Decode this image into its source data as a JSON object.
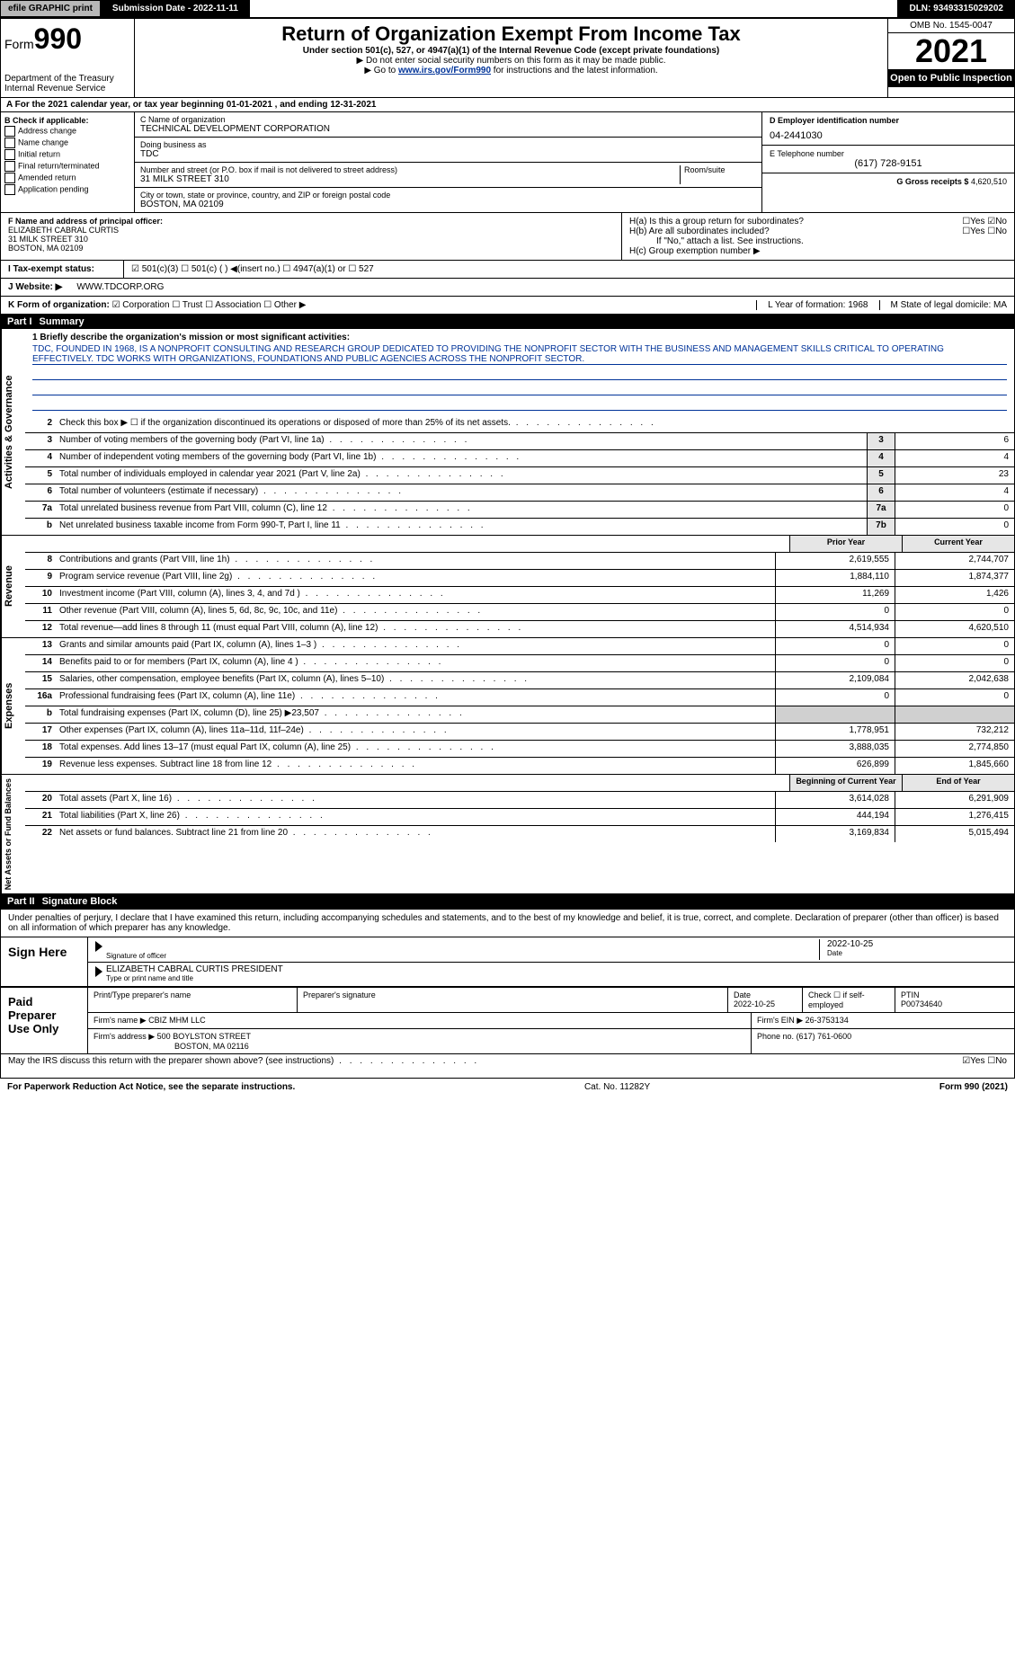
{
  "topbar": {
    "efile_prefix": "efile",
    "efile_bold": "GRAPHIC",
    "efile_suffix": "print",
    "submission": "Submission Date - 2022-11-11",
    "dln": "DLN: 93493315029202"
  },
  "header": {
    "form_prefix": "Form",
    "form_number": "990",
    "title": "Return of Organization Exempt From Income Tax",
    "subtitle": "Under section 501(c), 527, or 4947(a)(1) of the Internal Revenue Code (except private foundations)",
    "note1": "▶ Do not enter social security numbers on this form as it may be made public.",
    "note2_pre": "▶ Go to ",
    "note2_link": "www.irs.gov/Form990",
    "note2_post": " for instructions and the latest information.",
    "dept": "Department of the Treasury",
    "irs": "Internal Revenue Service",
    "omb": "OMB No. 1545-0047",
    "year": "2021",
    "open": "Open to Public Inspection"
  },
  "row_a": {
    "text": "A For the 2021 calendar year, or tax year beginning 01-01-2021     , and ending 12-31-2021"
  },
  "col_b": {
    "head": "B Check if applicable:",
    "opts": [
      "Address change",
      "Name change",
      "Initial return",
      "Final return/terminated",
      "Amended return",
      "Application pending"
    ]
  },
  "col_c": {
    "name_lbl": "C Name of organization",
    "name": "TECHNICAL DEVELOPMENT CORPORATION",
    "dba_lbl": "Doing business as",
    "dba": "TDC",
    "addr_lbl": "Number and street (or P.O. box if mail is not delivered to street address)",
    "room_lbl": "Room/suite",
    "addr": "31 MILK STREET 310",
    "city_lbl": "City or town, state or province, country, and ZIP or foreign postal code",
    "city": "BOSTON, MA  02109"
  },
  "col_de": {
    "d_lbl": "D Employer identification number",
    "d_val": "04-2441030",
    "e_lbl": "E Telephone number",
    "e_val": "(617) 728-9151",
    "g_lbl": "G Gross receipts $",
    "g_val": "4,620,510"
  },
  "row_f": {
    "lbl": "F Name and address of principal officer:",
    "name": "ELIZABETH CABRAL CURTIS",
    "addr1": "31 MILK STREET 310",
    "addr2": "BOSTON, MA  02109"
  },
  "row_h": {
    "a": "H(a)  Is this a group return for subordinates?",
    "a_ans": "☐Yes ☑No",
    "b": "H(b)  Are all subordinates included?",
    "b_ans": "☐Yes ☐No",
    "b_note": "If \"No,\" attach a list. See instructions.",
    "c": "H(c)  Group exemption number ▶"
  },
  "row_i": {
    "lbl": "I  Tax-exempt status:",
    "opts": "☑ 501(c)(3)   ☐ 501(c) (  ) ◀(insert no.)   ☐ 4947(a)(1) or   ☐ 527"
  },
  "row_j": {
    "lbl": "J  Website: ▶",
    "val": "WWW.TDCORP.ORG"
  },
  "row_k": {
    "lbl": "K Form of organization:",
    "opts": "☑ Corporation  ☐ Trust  ☐ Association  ☐ Other ▶",
    "l": "L Year of formation: 1968",
    "m": "M State of legal domicile: MA"
  },
  "part1": {
    "head": "Part I",
    "title": "Summary",
    "mission_lbl": "1  Briefly describe the organization's mission or most significant activities:",
    "mission": "TDC, FOUNDED IN 1968, IS A NONPROFIT CONSULTING AND RESEARCH GROUP DEDICATED TO PROVIDING THE NONPROFIT SECTOR WITH THE BUSINESS AND MANAGEMENT SKILLS CRITICAL TO OPERATING EFFECTIVELY. TDC WORKS WITH ORGANIZATIONS, FOUNDATIONS AND PUBLIC AGENCIES ACROSS THE NONPROFIT SECTOR."
  },
  "gov_lines": [
    {
      "n": "2",
      "t": "Check this box ▶ ☐ if the organization discontinued its operations or disposed of more than 25% of its net assets.",
      "box": "",
      "v": ""
    },
    {
      "n": "3",
      "t": "Number of voting members of the governing body (Part VI, line 1a)",
      "box": "3",
      "v": "6"
    },
    {
      "n": "4",
      "t": "Number of independent voting members of the governing body (Part VI, line 1b)",
      "box": "4",
      "v": "4"
    },
    {
      "n": "5",
      "t": "Total number of individuals employed in calendar year 2021 (Part V, line 2a)",
      "box": "5",
      "v": "23"
    },
    {
      "n": "6",
      "t": "Total number of volunteers (estimate if necessary)",
      "box": "6",
      "v": "4"
    },
    {
      "n": "7a",
      "t": "Total unrelated business revenue from Part VIII, column (C), line 12",
      "box": "7a",
      "v": "0"
    },
    {
      "n": "b",
      "t": "Net unrelated business taxable income from Form 990-T, Part I, line 11",
      "box": "7b",
      "v": "0"
    }
  ],
  "rev_head": {
    "prior": "Prior Year",
    "curr": "Current Year"
  },
  "rev_lines": [
    {
      "n": "8",
      "t": "Contributions and grants (Part VIII, line 1h)",
      "p": "2,619,555",
      "c": "2,744,707"
    },
    {
      "n": "9",
      "t": "Program service revenue (Part VIII, line 2g)",
      "p": "1,884,110",
      "c": "1,874,377"
    },
    {
      "n": "10",
      "t": "Investment income (Part VIII, column (A), lines 3, 4, and 7d )",
      "p": "11,269",
      "c": "1,426"
    },
    {
      "n": "11",
      "t": "Other revenue (Part VIII, column (A), lines 5, 6d, 8c, 9c, 10c, and 11e)",
      "p": "0",
      "c": "0"
    },
    {
      "n": "12",
      "t": "Total revenue—add lines 8 through 11 (must equal Part VIII, column (A), line 12)",
      "p": "4,514,934",
      "c": "4,620,510"
    }
  ],
  "exp_lines": [
    {
      "n": "13",
      "t": "Grants and similar amounts paid (Part IX, column (A), lines 1–3 )",
      "p": "0",
      "c": "0"
    },
    {
      "n": "14",
      "t": "Benefits paid to or for members (Part IX, column (A), line 4 )",
      "p": "0",
      "c": "0"
    },
    {
      "n": "15",
      "t": "Salaries, other compensation, employee benefits (Part IX, column (A), lines 5–10)",
      "p": "2,109,084",
      "c": "2,042,638"
    },
    {
      "n": "16a",
      "t": "Professional fundraising fees (Part IX, column (A), line 11e)",
      "p": "0",
      "c": "0"
    },
    {
      "n": "b",
      "t": "Total fundraising expenses (Part IX, column (D), line 25) ▶23,507",
      "p": "",
      "c": "",
      "shade": true
    },
    {
      "n": "17",
      "t": "Other expenses (Part IX, column (A), lines 11a–11d, 11f–24e)",
      "p": "1,778,951",
      "c": "732,212"
    },
    {
      "n": "18",
      "t": "Total expenses. Add lines 13–17 (must equal Part IX, column (A), line 25)",
      "p": "3,888,035",
      "c": "2,774,850"
    },
    {
      "n": "19",
      "t": "Revenue less expenses. Subtract line 18 from line 12",
      "p": "626,899",
      "c": "1,845,660"
    }
  ],
  "net_head": {
    "prior": "Beginning of Current Year",
    "curr": "End of Year"
  },
  "net_lines": [
    {
      "n": "20",
      "t": "Total assets (Part X, line 16)",
      "p": "3,614,028",
      "c": "6,291,909"
    },
    {
      "n": "21",
      "t": "Total liabilities (Part X, line 26)",
      "p": "444,194",
      "c": "1,276,415"
    },
    {
      "n": "22",
      "t": "Net assets or fund balances. Subtract line 21 from line 20",
      "p": "3,169,834",
      "c": "5,015,494"
    }
  ],
  "part2": {
    "head": "Part II",
    "title": "Signature Block",
    "decl": "Under penalties of perjury, I declare that I have examined this return, including accompanying schedules and statements, and to the best of my knowledge and belief, it is true, correct, and complete. Declaration of preparer (other than officer) is based on all information of which preparer has any knowledge."
  },
  "sign": {
    "label": "Sign Here",
    "sig_lbl": "Signature of officer",
    "date_lbl": "Date",
    "date": "2022-10-25",
    "name": "ELIZABETH CABRAL CURTIS  PRESIDENT",
    "name_lbl": "Type or print name and title"
  },
  "prep": {
    "label": "Paid Preparer Use Only",
    "h1": "Print/Type preparer's name",
    "h2": "Preparer's signature",
    "h3": "Date",
    "h3v": "2022-10-25",
    "h4": "Check ☐ if self-employed",
    "h5": "PTIN",
    "h5v": "P00734640",
    "firm_lbl": "Firm's name    ▶",
    "firm": "CBIZ MHM LLC",
    "ein_lbl": "Firm's EIN ▶",
    "ein": "26-3753134",
    "addr_lbl": "Firm's address ▶",
    "addr1": "500 BOYLSTON STREET",
    "addr2": "BOSTON, MA  02116",
    "phone_lbl": "Phone no.",
    "phone": "(617) 761-0600"
  },
  "discuss": {
    "text": "May the IRS discuss this return with the preparer shown above? (see instructions)",
    "ans": "☑Yes  ☐No"
  },
  "footer": {
    "left": "For Paperwork Reduction Act Notice, see the separate instructions.",
    "mid": "Cat. No. 11282Y",
    "right": "Form 990 (2021)"
  },
  "vert": {
    "gov": "Activities & Governance",
    "rev": "Revenue",
    "exp": "Expenses",
    "net": "Net Assets or Fund Balances"
  }
}
